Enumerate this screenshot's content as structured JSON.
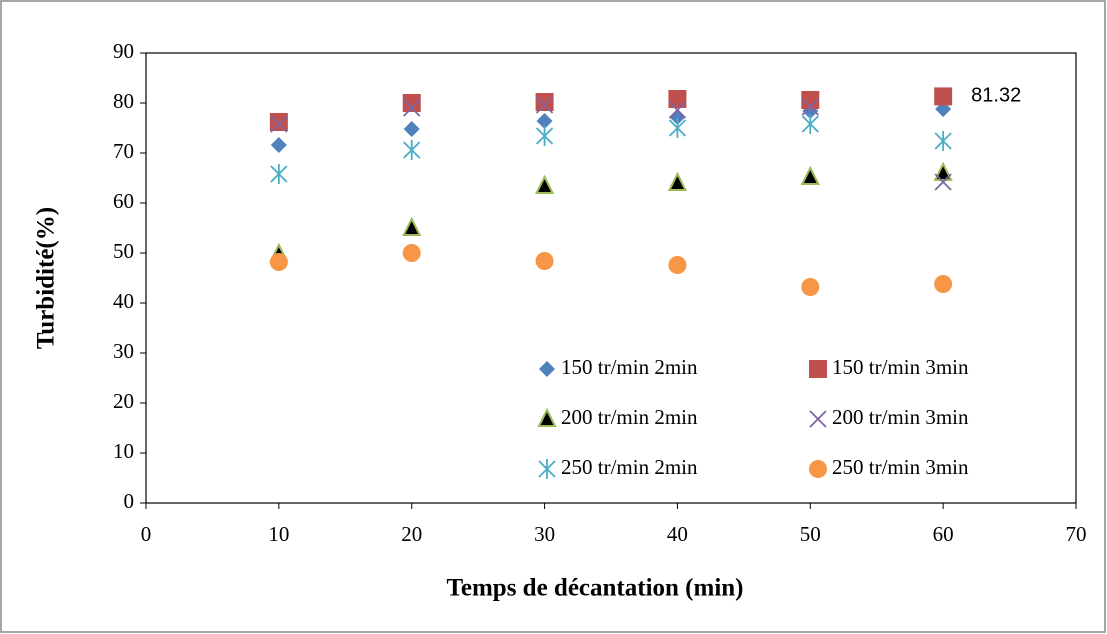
{
  "chart_data": {
    "type": "scatter",
    "x_label": "Temps de décantation (min)",
    "y_label": "Turbidité(%)",
    "x": [
      10,
      20,
      30,
      40,
      50,
      60
    ],
    "series": [
      {
        "name": "150 tr/min 2min",
        "color": "#4f81bd",
        "marker": "diamond",
        "values": [
          71.6,
          74.8,
          76.4,
          77.2,
          78.4,
          78.8
        ]
      },
      {
        "name": "150 tr/min 3min",
        "color": "#c0504d",
        "marker": "square",
        "values": [
          76.2,
          80,
          80.2,
          80.8,
          80.6,
          81.32
        ],
        "label_points": [
          5
        ]
      },
      {
        "name": "200 tr/min 2min",
        "color": "#9bbb59",
        "marker": "triangle",
        "values": [
          49.8,
          55,
          63.4,
          64,
          65.2,
          66
        ]
      },
      {
        "name": "200 tr/min 3min",
        "color": "#8064a2",
        "marker": "x",
        "values": [
          75.8,
          79,
          79.6,
          78.6,
          79.2,
          64.2
        ]
      },
      {
        "name": "250 tr/min 2min",
        "color": "#4bacc6",
        "marker": "star",
        "values": [
          65.8,
          70.6,
          73.4,
          75,
          75.8,
          72.4
        ]
      },
      {
        "name": "250 tr/min 3min",
        "color": "#f79646",
        "marker": "circle",
        "values": [
          48.2,
          50,
          48.4,
          47.6,
          43.2,
          43.8
        ]
      }
    ],
    "xlim": [
      0,
      70
    ],
    "xticks": [
      0,
      10,
      20,
      30,
      40,
      50,
      60,
      70
    ],
    "ylim": [
      0,
      90
    ],
    "yticks": [
      0,
      10,
      20,
      30,
      40,
      50,
      60,
      70,
      80,
      90
    ],
    "grid": false,
    "legend": "inside-bottom-right"
  }
}
